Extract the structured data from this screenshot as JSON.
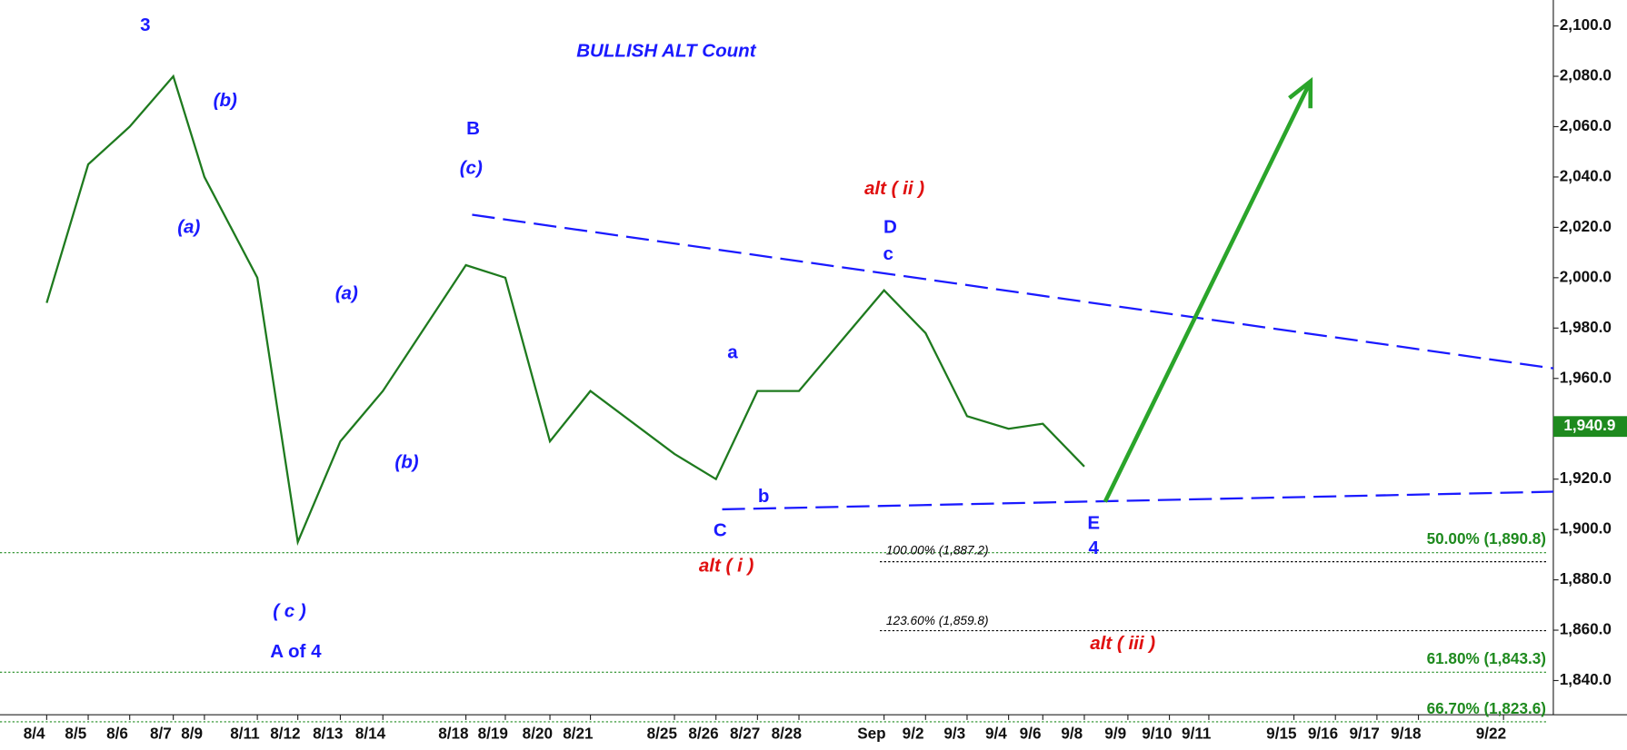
{
  "chart_data": {
    "type": "line",
    "title": "BULLISH ALT Count",
    "categories": [
      "8/4",
      "8/5",
      "8/6",
      "8/7",
      "8/9",
      "8/11",
      "8/12",
      "8/13",
      "8/14",
      "8/18",
      "8/19",
      "8/20",
      "8/21",
      "8/25",
      "8/26",
      "8/27",
      "8/28",
      "Sep",
      "9/2",
      "9/3",
      "9/4",
      "9/6",
      "9/8",
      "9/9",
      "9/10",
      "9/11",
      "9/15",
      "9/16",
      "9/17",
      "9/18",
      "9/22"
    ],
    "series": [
      {
        "color": "#1e7a1e",
        "values": [
          1990,
          2045,
          2060,
          2080,
          2040,
          2000,
          1895,
          1935,
          1955,
          2005,
          2000,
          1935,
          1955,
          1930,
          1920,
          1955,
          1955,
          1995,
          1978,
          1945,
          1940,
          1942,
          1925,
          null,
          null,
          null,
          null,
          null,
          null,
          null,
          null
        ]
      }
    ],
    "ylim": [
      1826.4,
      2110.3
    ],
    "yticks": [
      {
        "value": 1840,
        "label": "1,840.0"
      },
      {
        "value": 1860,
        "label": "1,860.0"
      },
      {
        "value": 1880,
        "label": "1,880.0"
      },
      {
        "value": 1900,
        "label": "1,900.0"
      },
      {
        "value": 1920,
        "label": "1,920.0"
      },
      {
        "value": 1940,
        "label": "1,940.0"
      },
      {
        "value": 1960,
        "label": "1,960.0"
      },
      {
        "value": 1980,
        "label": "1,980.0"
      },
      {
        "value": 2000,
        "label": "2,000.0"
      },
      {
        "value": 2020,
        "label": "2,020.0"
      },
      {
        "value": 2040,
        "label": "2,040.0"
      },
      {
        "value": 2060,
        "label": "2,060.0"
      },
      {
        "value": 2080,
        "label": "2,080.0"
      },
      {
        "value": 2100,
        "label": "2,100.0"
      }
    ],
    "last_price": {
      "value": 1940.9,
      "label": "1,940.9",
      "color": "#1e8a1e"
    },
    "fib_levels": [
      {
        "label": "50.00% (1,890.8)",
        "value": 1890.8,
        "color": "#1e8a1e"
      },
      {
        "label": "100.00% (1,887.2)",
        "value": 1887.2,
        "color": "#000000"
      },
      {
        "label": "123.60% (1,859.8)",
        "value": 1859.8,
        "color": "#000000"
      },
      {
        "label": "61.80% (1,843.3)",
        "value": 1843.3,
        "color": "#1e8a1e"
      },
      {
        "label": "66.70% (1,823.6)",
        "value": 1823.6,
        "color": "#1e8a1e"
      }
    ],
    "trendlines": [
      {
        "start": "8/18",
        "start_value": 2025,
        "end_value": 1964,
        "color": "#1a1aff"
      },
      {
        "start": "8/26",
        "start_value": 1908,
        "end_value": 1915,
        "color": "#1a1aff"
      }
    ],
    "arrow": {
      "start": "9/9",
      "start_value": 1911,
      "end": "9/16",
      "end_value": 2078,
      "color": "#2aa52a"
    },
    "annotations": [
      {
        "text": "3",
        "color": "#1a1aff"
      },
      {
        "text": "(b)",
        "color": "#1a1aff"
      },
      {
        "text": "(a)",
        "color": "#1a1aff"
      },
      {
        "text": "B",
        "color": "#1a1aff"
      },
      {
        "text": "(c)",
        "color": "#1a1aff"
      },
      {
        "text": "(a)",
        "color": "#1a1aff"
      },
      {
        "text": "(b)",
        "color": "#1a1aff"
      },
      {
        "text": "( c )",
        "color": "#1a1aff"
      },
      {
        "text": "A of 4",
        "color": "#1a1aff"
      },
      {
        "text": "alt ( ii )",
        "color": "#e01010"
      },
      {
        "text": "D",
        "color": "#1a1aff"
      },
      {
        "text": "c",
        "color": "#1a1aff"
      },
      {
        "text": "a",
        "color": "#1a1aff"
      },
      {
        "text": "b",
        "color": "#1a1aff"
      },
      {
        "text": "C",
        "color": "#1a1aff"
      },
      {
        "text": "alt ( i )",
        "color": "#e01010"
      },
      {
        "text": "E",
        "color": "#1a1aff"
      },
      {
        "text": "4",
        "color": "#1a1aff"
      },
      {
        "text": "alt ( iii )",
        "color": "#e01010"
      }
    ]
  }
}
